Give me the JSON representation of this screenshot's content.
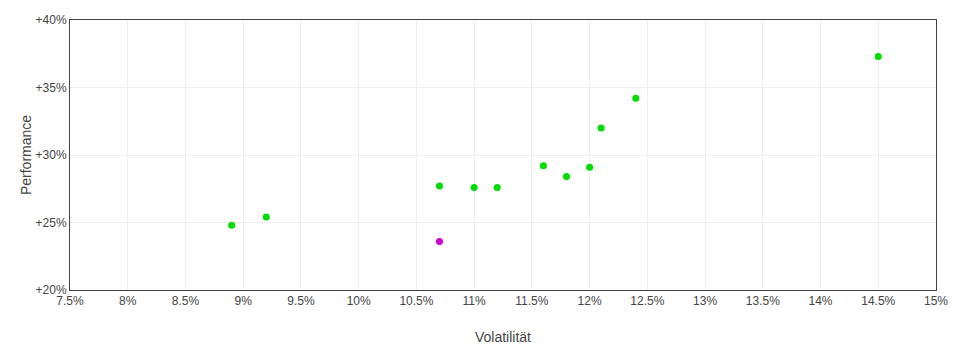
{
  "chart_data": {
    "type": "scatter",
    "xlabel": "Volatilität",
    "ylabel": "Performance",
    "xlim": [
      0.075,
      0.15
    ],
    "ylim": [
      0.2,
      0.4
    ],
    "xticks": [
      {
        "value": 0.075,
        "label": "7.5%"
      },
      {
        "value": 0.08,
        "label": "8%"
      },
      {
        "value": 0.085,
        "label": "8.5%"
      },
      {
        "value": 0.09,
        "label": "9%"
      },
      {
        "value": 0.095,
        "label": "9.5%"
      },
      {
        "value": 0.1,
        "label": "10%"
      },
      {
        "value": 0.105,
        "label": "10.5%"
      },
      {
        "value": 0.11,
        "label": "11%"
      },
      {
        "value": 0.115,
        "label": "11.5%"
      },
      {
        "value": 0.12,
        "label": "12%"
      },
      {
        "value": 0.125,
        "label": "12.5%"
      },
      {
        "value": 0.13,
        "label": "13%"
      },
      {
        "value": 0.135,
        "label": "13.5%"
      },
      {
        "value": 0.14,
        "label": "14%"
      },
      {
        "value": 0.145,
        "label": "14.5%"
      },
      {
        "value": 0.15,
        "label": "15%"
      }
    ],
    "yticks": [
      {
        "value": 0.2,
        "label": "+20%"
      },
      {
        "value": 0.25,
        "label": "+25%"
      },
      {
        "value": 0.3,
        "label": "+30%"
      },
      {
        "value": 0.35,
        "label": "+35%"
      },
      {
        "value": 0.4,
        "label": "+40%"
      }
    ],
    "grid": true,
    "series": [
      {
        "color": "#00dd00",
        "x": [
          0.089,
          0.092,
          0.107,
          0.11,
          0.112,
          0.116,
          0.118,
          0.12,
          0.121,
          0.124,
          0.145
        ],
        "values": [
          0.248,
          0.254,
          0.277,
          0.276,
          0.276,
          0.292,
          0.284,
          0.291,
          0.32,
          0.342,
          0.373
        ]
      },
      {
        "color": "#cc00cc",
        "x": [
          0.107
        ],
        "values": [
          0.236
        ]
      }
    ]
  }
}
